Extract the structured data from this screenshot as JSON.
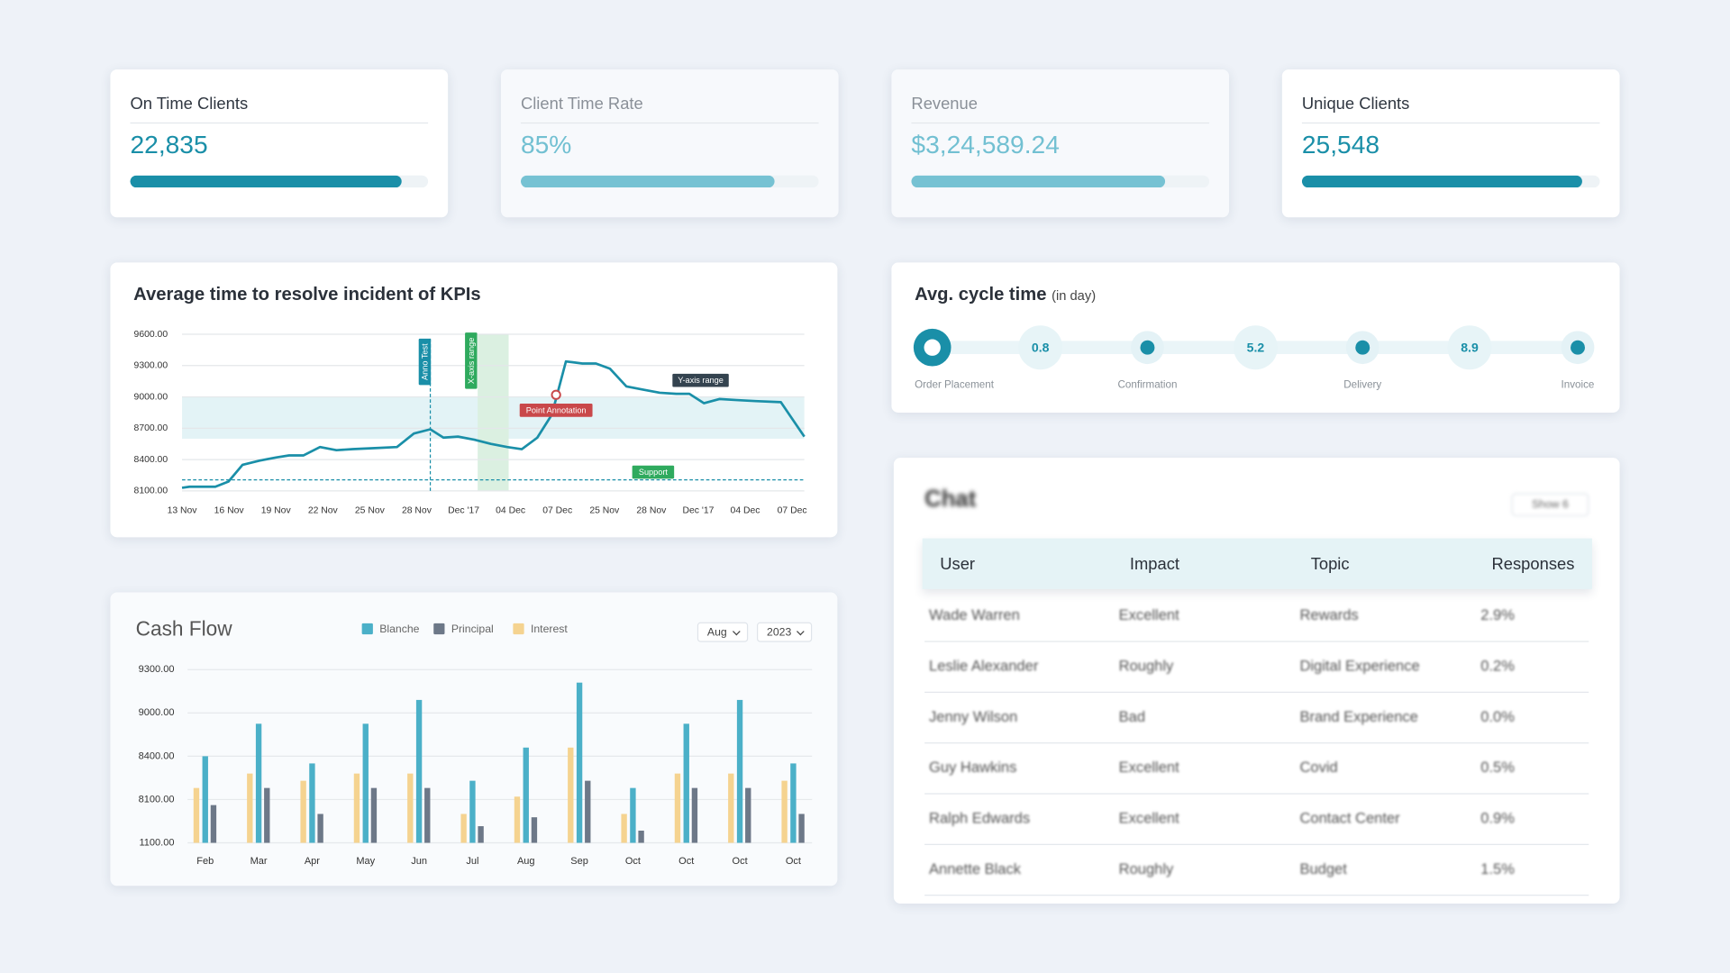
{
  "kpis": [
    {
      "title": "On Time Clients",
      "value": "22,835",
      "progress": 91
    },
    {
      "title": "Client Time Rate",
      "value": "85%",
      "progress": 85
    },
    {
      "title": "Revenue",
      "value": "$3,24,589.24",
      "progress": 85
    },
    {
      "title": "Unique Clients",
      "value": "25,548",
      "progress": 94
    }
  ],
  "incident_chart": {
    "type": "line",
    "title": "Average time to resolve incident of KPIs",
    "x": [
      0,
      0.16,
      0.35,
      0.71,
      0.99,
      1.29,
      1.65,
      2.0,
      2.28,
      2.59,
      2.94,
      3.29,
      3.64,
      4.11,
      4.58,
      4.94,
      5.29,
      5.57,
      5.88,
      6.23,
      6.58,
      6.93,
      7.24,
      7.57,
      7.88,
      8.18,
      8.53,
      8.82,
      9.12,
      9.47,
      9.82,
      10.18,
      10.53,
      10.81,
      11.12,
      11.45,
      11.82,
      12.22,
      12.76,
      13.26
    ],
    "series": [
      {
        "color": "#1a8fa8",
        "values": [
          8130,
          8140,
          8140,
          8140,
          8190,
          8350,
          8390,
          8420,
          8440,
          8440,
          8520,
          8490,
          8500,
          8510,
          8520,
          8650,
          8690,
          8610,
          8620,
          8590,
          8550,
          8520,
          8500,
          8610,
          8830,
          9340,
          9320,
          9320,
          9270,
          9100,
          9070,
          9040,
          9030,
          9030,
          8940,
          8980,
          8970,
          8960,
          8950,
          8620
        ]
      }
    ],
    "xlim": [
      0,
      13.26
    ],
    "xticks": [
      {
        "value": 0,
        "label": "13 Nov"
      },
      {
        "value": 1,
        "label": "16 Nov"
      },
      {
        "value": 2,
        "label": "19 Nov"
      },
      {
        "value": 3,
        "label": "22 Nov"
      },
      {
        "value": 4,
        "label": "25 Nov"
      },
      {
        "value": 5,
        "label": "28 Nov"
      },
      {
        "value": 6,
        "label": "Dec '17"
      },
      {
        "value": 7,
        "label": "04 Dec"
      },
      {
        "value": 8,
        "label": "07 Dec"
      },
      {
        "value": 9,
        "label": "25 Nov"
      },
      {
        "value": 10,
        "label": "28 Nov"
      },
      {
        "value": 11,
        "label": "Dec '17"
      },
      {
        "value": 12,
        "label": "04 Dec"
      },
      {
        "value": 13,
        "label": "07 Dec"
      }
    ],
    "ylim": [
      8100,
      9600
    ],
    "yticks": [
      {
        "value": 8100,
        "label": "8100.00"
      },
      {
        "value": 8400,
        "label": "8400.00"
      },
      {
        "value": 8700,
        "label": "8700.00"
      },
      {
        "value": 9000,
        "label": "9000.00"
      },
      {
        "value": 9300,
        "label": "9300.00"
      },
      {
        "value": 9600,
        "label": "9600.00"
      }
    ],
    "grid": true,
    "annotations": {
      "y_range": {
        "range": [
          8600,
          9000
        ],
        "label": "Y-axis range"
      },
      "x_range": {
        "range": [
          6.3,
          6.96
        ],
        "label": "X-axis range"
      },
      "x_line": {
        "x": 5.29,
        "label": "Anno Test"
      },
      "point": {
        "x": 7.97,
        "y": 9020,
        "label": "Point Annotation"
      },
      "support": {
        "y": 8206,
        "label": "Support"
      }
    }
  },
  "cycle_time": {
    "title": "Avg. cycle time",
    "unit": "(in day)",
    "stages": [
      "Order Placement",
      "Confirmation",
      "Delivery",
      "Invoice"
    ],
    "values": [
      0.8,
      5.2,
      8.9
    ]
  },
  "cash_flow": {
    "type": "bar",
    "title": "Cash Flow",
    "controls": [
      "Aug",
      "2023"
    ],
    "categories": [
      "Feb",
      "Mar",
      "Apr",
      "May",
      "Jun",
      "Jul",
      "Aug",
      "Sep",
      "Oct",
      "Oct",
      "Oct",
      "Oct"
    ],
    "series": [
      {
        "name": "Blanche",
        "color": "#4bb0c8",
        "values": [
          8400,
          8850,
          8350,
          8850,
          9090,
          8230,
          8520,
          9210,
          8180,
          8850,
          9090,
          8350
        ]
      },
      {
        "name": "Principal",
        "color": "#6d7888",
        "values": [
          7200,
          8180,
          5770,
          8180,
          8180,
          3790,
          5230,
          8230,
          3070,
          8180,
          8180,
          5770
        ]
      },
      {
        "name": "Interest",
        "color": "#f5d390",
        "values": [
          8180,
          8280,
          8230,
          8280,
          8280,
          5770,
          8120,
          8520,
          5770,
          8280,
          8280,
          8230
        ]
      }
    ],
    "ylim": [
      1100,
      9300
    ],
    "yticks": [
      {
        "value": 9300,
        "label": "9300.00"
      },
      {
        "value": 9000,
        "label": "9000.00"
      },
      {
        "value": 8400,
        "label": "8400.00"
      },
      {
        "value": 8100,
        "label": "8100.00"
      },
      {
        "value": 1100,
        "label": "1100.00"
      }
    ],
    "grid": true
  },
  "chat": {
    "title": "Chat",
    "filter": "Show 6",
    "columns": [
      "User",
      "Impact",
      "Topic",
      "Responses"
    ],
    "rows": [
      [
        "Wade Warren",
        "Excellent",
        "Rewards",
        "2.9%"
      ],
      [
        "Leslie Alexander",
        "Roughly",
        "Digital Experience",
        "0.2%"
      ],
      [
        "Jenny Wilson",
        "Bad",
        "Brand Experience",
        "0.0%"
      ],
      [
        "Guy Hawkins",
        "Excellent",
        "Covid",
        "0.5%"
      ],
      [
        "Ralph Edwards",
        "Excellent",
        "Contact Center",
        "0.9%"
      ],
      [
        "Annette Black",
        "Roughly",
        "Budget",
        "1.5%"
      ]
    ]
  }
}
